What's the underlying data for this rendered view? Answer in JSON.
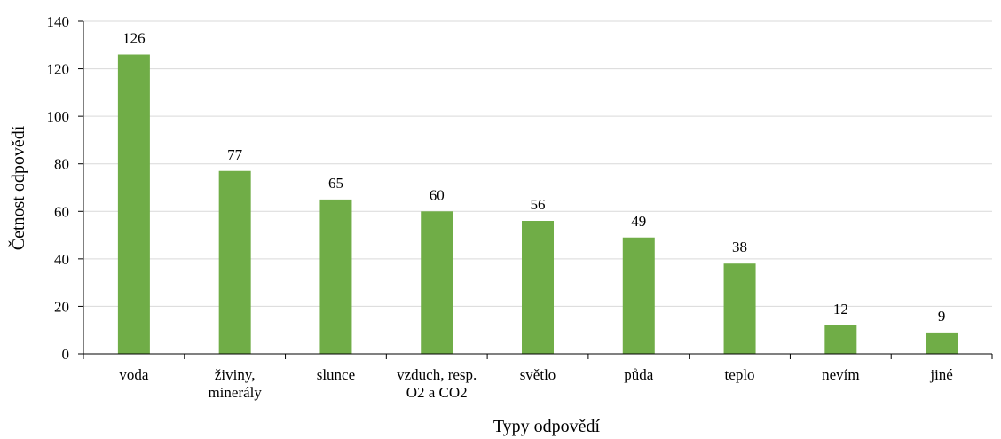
{
  "chart_data": {
    "type": "bar",
    "categories": [
      [
        "voda"
      ],
      [
        "živiny,",
        "minerály"
      ],
      [
        "slunce"
      ],
      [
        "vzduch, resp.",
        "O2 a CO2"
      ],
      [
        "světlo"
      ],
      [
        "půda"
      ],
      [
        "teplo"
      ],
      [
        "nevím"
      ],
      [
        "jiné"
      ]
    ],
    "values": [
      126,
      77,
      65,
      60,
      56,
      49,
      38,
      12,
      9
    ],
    "data_labels": [
      "126",
      "77",
      "65",
      "60",
      "56",
      "49",
      "38",
      "12",
      "9"
    ],
    "xlabel": "Typy odpovědí",
    "ylabel": "Četnost odpovědí",
    "ylim": [
      0,
      140
    ],
    "yticks": [
      0,
      20,
      40,
      60,
      80,
      100,
      120,
      140
    ],
    "grid": true,
    "legend": "none",
    "colors": {
      "bar": "#70AD47",
      "grid": "#D9D9D9",
      "axis": "#000000"
    }
  }
}
